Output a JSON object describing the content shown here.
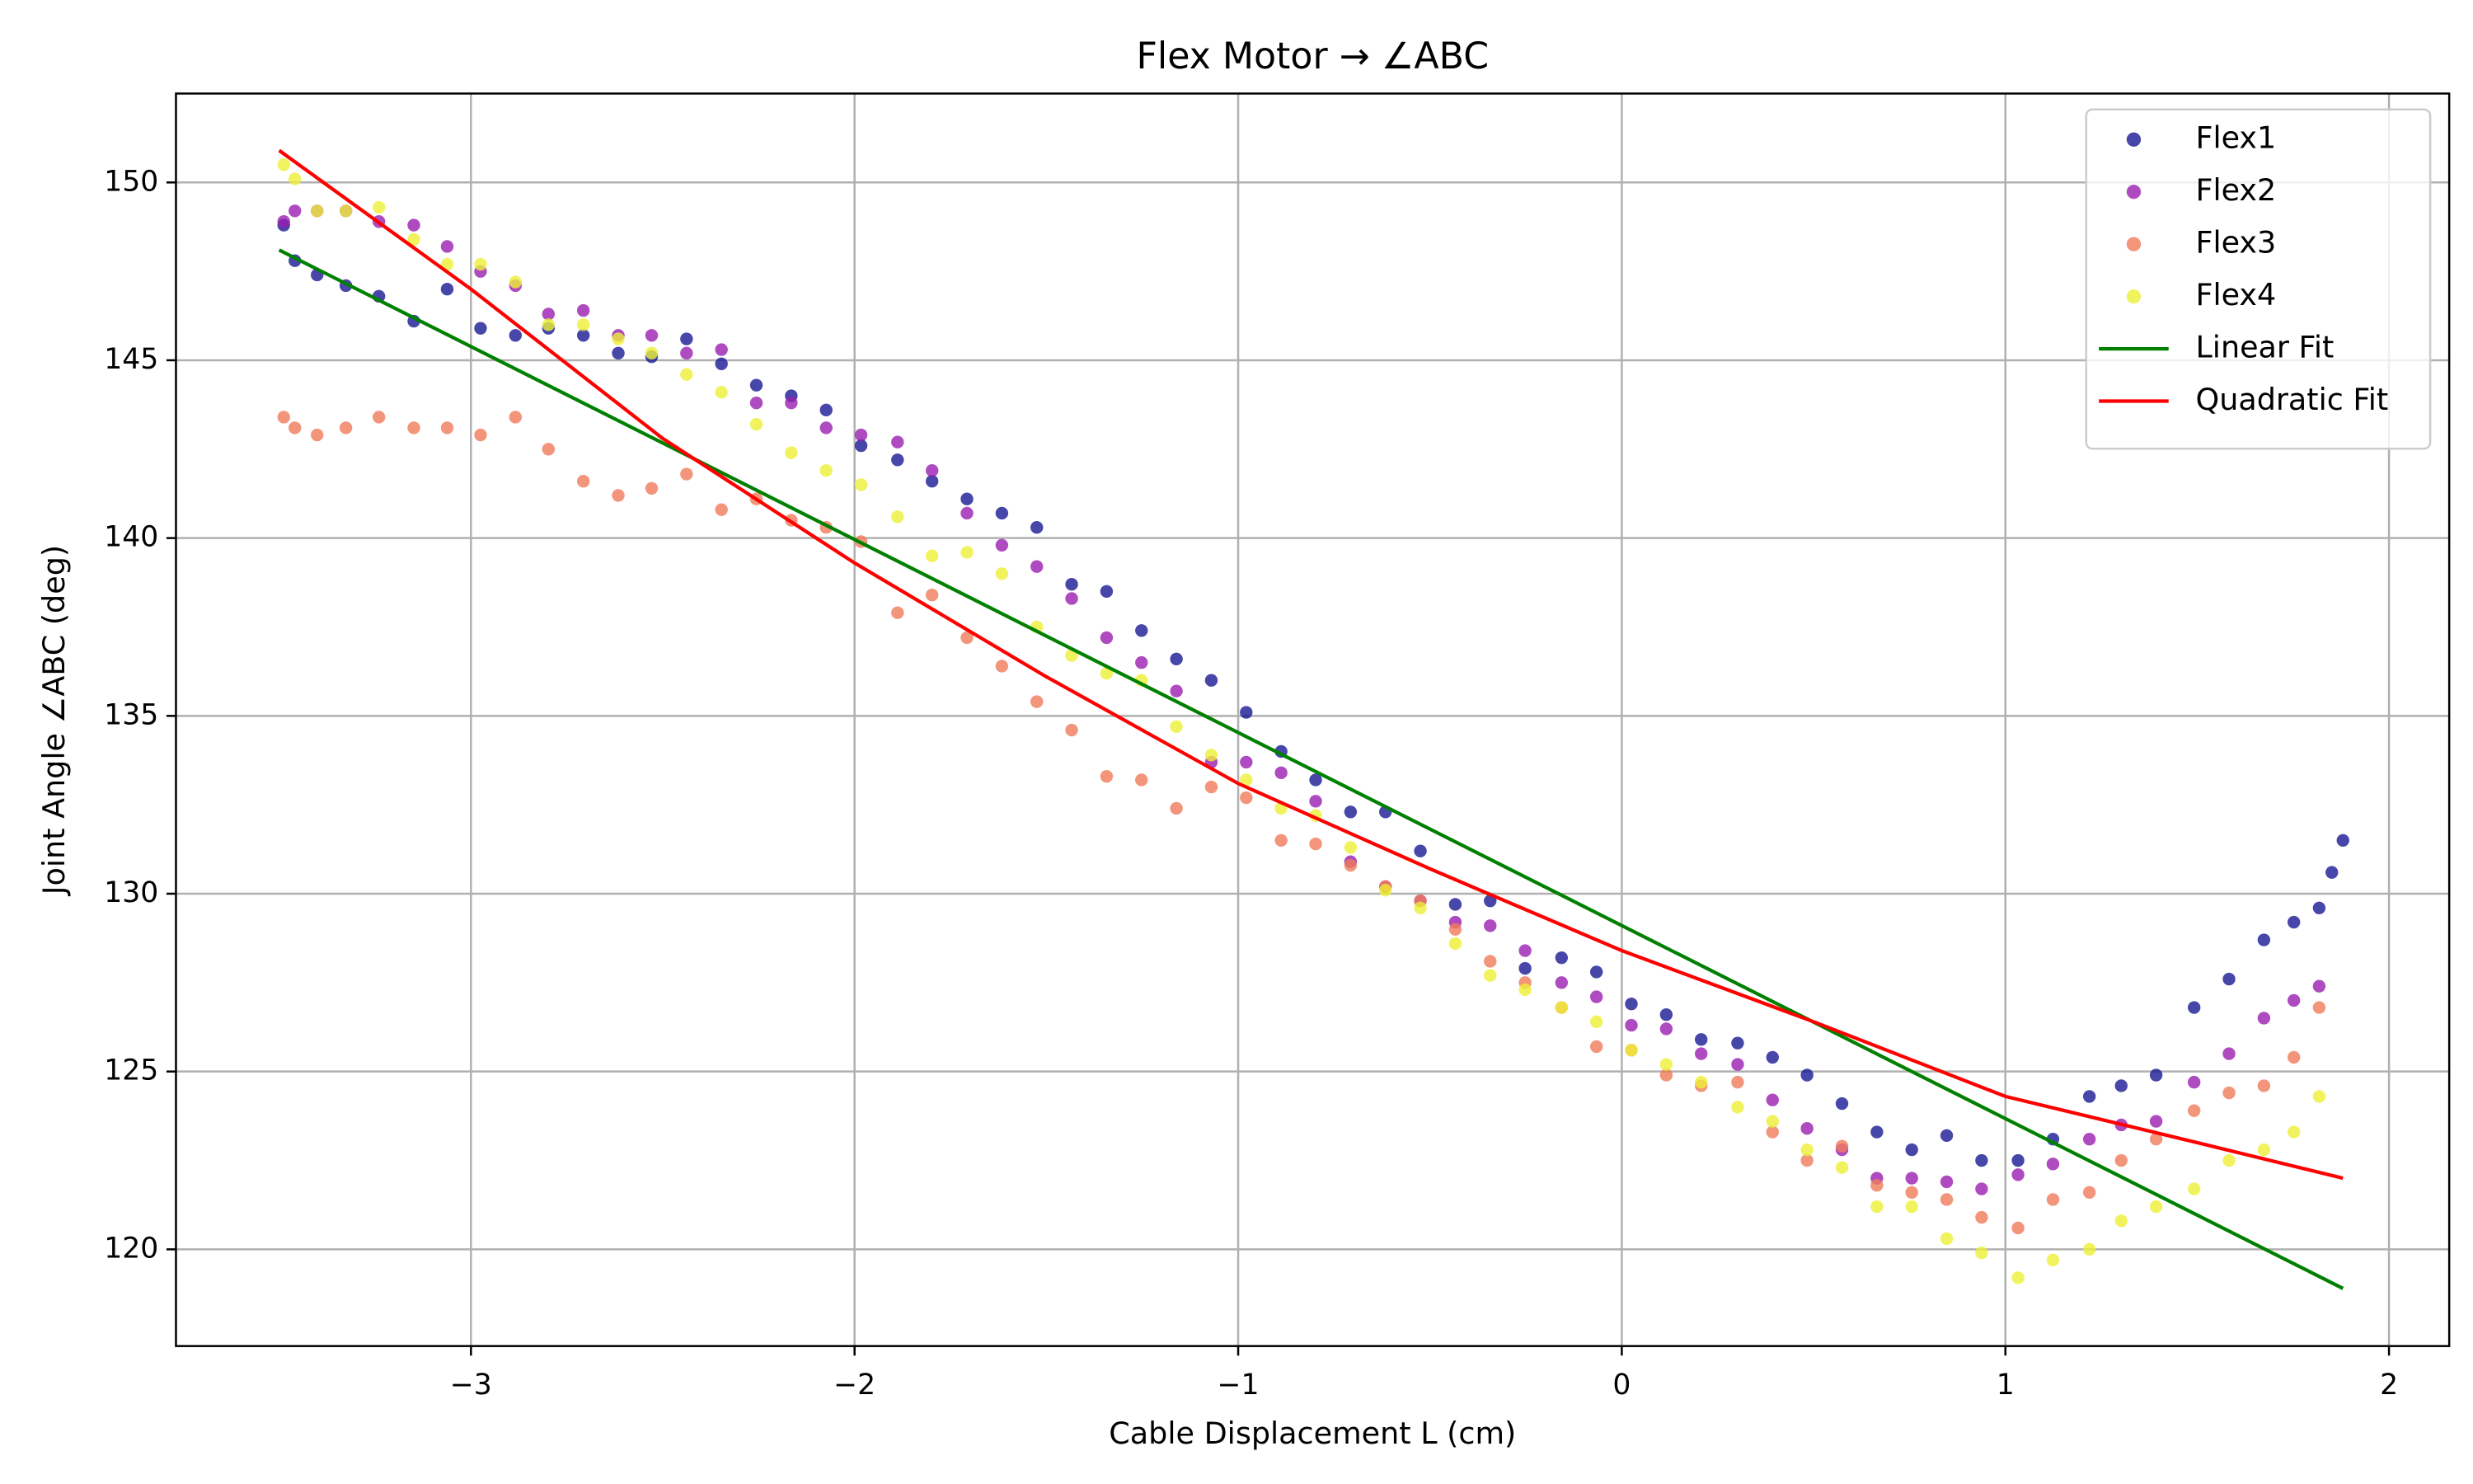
{
  "chart_data": {
    "type": "scatter",
    "title": "Flex Motor → ∠ABC",
    "x_label": "Cable Displacement L (cm)",
    "y_label": "Joint Angle ∠ABC (deg)",
    "xlim": [
      -3.769,
      2.157
    ],
    "ylim": [
      117.28,
      152.5
    ],
    "xticks": [
      {
        "value": -3,
        "label": "−3"
      },
      {
        "value": -2,
        "label": "−2"
      },
      {
        "value": -1,
        "label": "−1"
      },
      0,
      1,
      2
    ],
    "yticks": [
      120,
      125,
      130,
      135,
      140,
      145,
      150
    ],
    "grid": true,
    "legend": "upper right",
    "x": [
      -3.488,
      -3.459,
      -3.401,
      -3.326,
      -3.24,
      -3.149,
      -3.062,
      -2.975,
      -2.884,
      -2.798,
      -2.707,
      -2.616,
      -2.529,
      -2.438,
      -2.347,
      -2.256,
      -2.165,
      -2.074,
      -1.983,
      -1.888,
      -1.798,
      -1.707,
      -1.616,
      -1.525,
      -1.434,
      -1.343,
      -1.252,
      -1.161,
      -1.07,
      -0.979,
      -0.888,
      -0.798,
      -0.707,
      -0.616,
      -0.525,
      -0.434,
      -0.343,
      -0.252,
      -0.157,
      -0.066,
      0.025,
      0.116,
      0.207,
      0.302,
      0.393,
      0.483,
      0.574,
      0.665,
      0.756,
      0.847,
      0.938,
      1.033,
      1.124,
      1.219,
      1.302,
      1.393,
      1.492,
      1.583,
      1.674,
      1.752,
      1.818,
      1.851,
      1.88
    ],
    "series": [
      {
        "name": "Flex1",
        "type": "scatter",
        "color": "#191994",
        "values": [
          148.8,
          147.8,
          147.4,
          147.1,
          146.8,
          146.1,
          147.0,
          145.9,
          145.7,
          145.9,
          145.7,
          145.2,
          145.1,
          145.6,
          144.9,
          144.3,
          144.0,
          143.6,
          142.6,
          142.2,
          141.6,
          141.1,
          140.7,
          140.3,
          138.7,
          138.5,
          137.4,
          136.6,
          136.0,
          135.1,
          134.0,
          133.2,
          132.3,
          132.3,
          131.2,
          129.7,
          129.8,
          127.9,
          128.2,
          127.8,
          126.9,
          126.6,
          125.9,
          125.8,
          125.4,
          124.9,
          124.1,
          123.3,
          122.8,
          123.2,
          122.5,
          122.5,
          123.1,
          124.3,
          124.6,
          124.9,
          126.8,
          127.6,
          128.7,
          129.2,
          129.6,
          130.6,
          131.5
        ]
      },
      {
        "name": "Flex2",
        "type": "scatter",
        "color": "#9a1eb0",
        "values": [
          148.9,
          149.2,
          149.2,
          149.2,
          148.9,
          148.8,
          148.2,
          147.5,
          147.1,
          146.3,
          146.4,
          145.7,
          145.7,
          145.2,
          145.3,
          143.8,
          143.8,
          143.1,
          142.9,
          142.7,
          141.9,
          140.7,
          139.8,
          139.2,
          138.3,
          137.2,
          136.5,
          135.7,
          133.7,
          133.7,
          133.4,
          132.6,
          130.9,
          130.2,
          129.8,
          129.2,
          129.1,
          128.4,
          127.5,
          127.1,
          126.3,
          126.2,
          125.5,
          125.2,
          124.2,
          123.4,
          122.8,
          122.0,
          122.0,
          121.9,
          121.7,
          122.1,
          122.4,
          123.1,
          123.5,
          123.6,
          124.7,
          125.5,
          126.5,
          127.0,
          127.4,
          null,
          null
        ]
      },
      {
        "name": "Flex3",
        "type": "scatter",
        "color": "#ef7a5a",
        "values": [
          143.4,
          143.1,
          142.9,
          143.1,
          143.4,
          143.1,
          143.1,
          142.9,
          143.4,
          142.5,
          141.6,
          141.2,
          141.4,
          141.8,
          140.8,
          141.1,
          140.5,
          140.3,
          139.9,
          137.9,
          138.4,
          137.2,
          136.4,
          135.4,
          134.6,
          133.3,
          133.2,
          132.4,
          133.0,
          132.7,
          131.5,
          131.4,
          130.8,
          130.2,
          129.8,
          129.0,
          128.1,
          127.5,
          126.8,
          125.7,
          125.6,
          124.9,
          124.6,
          124.7,
          123.3,
          122.5,
          122.9,
          121.8,
          121.6,
          121.4,
          120.9,
          120.6,
          121.4,
          121.6,
          122.5,
          123.1,
          123.9,
          124.4,
          124.6,
          125.4,
          126.8,
          null,
          null
        ]
      },
      {
        "name": "Flex4",
        "type": "scatter",
        "color": "#eef036",
        "values": [
          150.5,
          150.1,
          149.2,
          149.2,
          149.3,
          148.4,
          147.7,
          147.7,
          147.2,
          146.0,
          146.0,
          145.6,
          145.2,
          144.6,
          144.1,
          143.2,
          142.4,
          141.9,
          141.5,
          140.6,
          139.5,
          139.6,
          139.0,
          137.5,
          136.7,
          136.2,
          136.0,
          134.7,
          133.9,
          133.2,
          132.4,
          132.2,
          131.3,
          130.1,
          129.6,
          128.6,
          127.7,
          127.3,
          126.8,
          126.4,
          125.6,
          125.2,
          124.7,
          124.0,
          123.6,
          122.8,
          122.3,
          121.2,
          121.2,
          120.3,
          119.9,
          119.2,
          119.7,
          120.0,
          120.8,
          121.2,
          121.7,
          122.5,
          122.8,
          123.3,
          124.3,
          null,
          null
        ]
      },
      {
        "name": "Linear Fit",
        "type": "line",
        "color": "#008000",
        "x": [
          -3.5,
          1.88
        ],
        "values": [
          148.1,
          118.9
        ]
      },
      {
        "name": "Quadratic Fit",
        "type": "line",
        "color": "#ff0000",
        "x": [
          -3.5,
          -3,
          -2.5,
          -2,
          -1.5,
          -1,
          -0.5,
          0,
          0.5,
          1,
          1.5,
          1.88
        ],
        "values": [
          150.9,
          147.0,
          142.8,
          139.3,
          136.1,
          133.1,
          130.7,
          128.4,
          126.4,
          124.3,
          123.0,
          122.0
        ]
      }
    ]
  }
}
